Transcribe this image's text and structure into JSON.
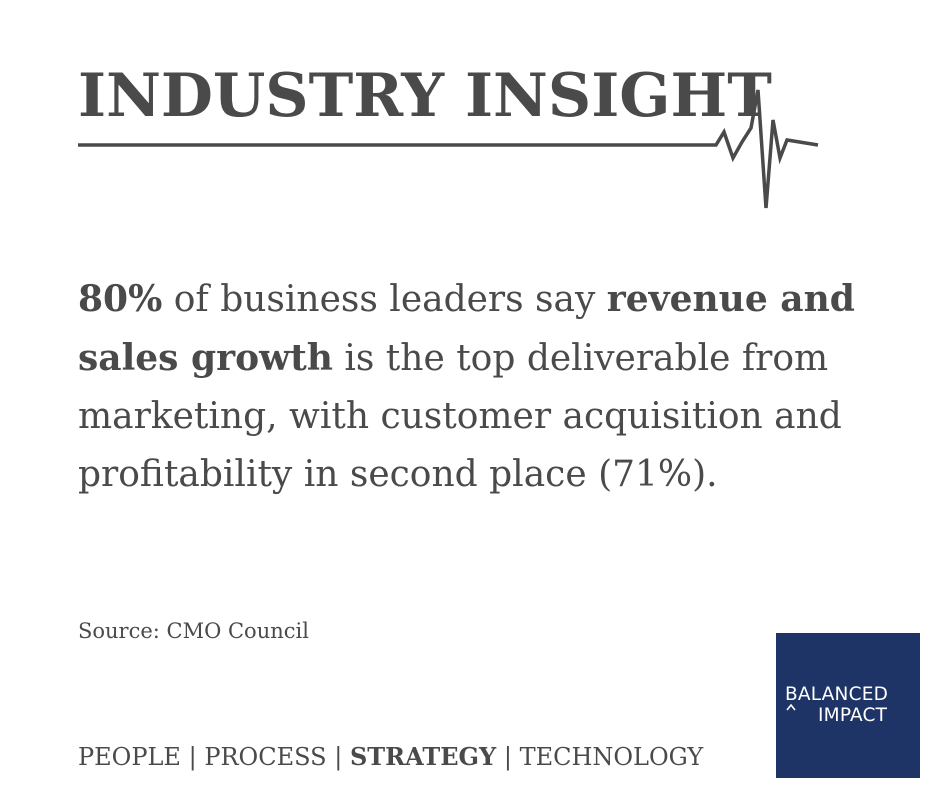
{
  "header": {
    "title": "INDUSTRY INSIGHT"
  },
  "insight": {
    "segments": [
      {
        "text": "80%",
        "bold": true
      },
      {
        "text": " of business leaders say ",
        "bold": false
      },
      {
        "text": "revenue and sales growth",
        "bold": true
      },
      {
        "text": " is the top deliverable from marketing, with customer acquisition and profitability in second place (71%).",
        "bold": false
      }
    ]
  },
  "source": {
    "text": "Source: CMO Council"
  },
  "tagline": {
    "items": [
      {
        "text": "PEOPLE",
        "bold": false
      },
      {
        "text": "PROCESS",
        "bold": false
      },
      {
        "text": "STRATEGY",
        "bold": true
      },
      {
        "text": "TECHNOLOGY",
        "bold": false
      }
    ],
    "separator": "|"
  },
  "logo": {
    "line1": "BALANCED",
    "line2": "IMPACT",
    "background": "#1e3366",
    "text_color": "#ffffff"
  },
  "colors": {
    "text": "#4a4a4a",
    "accent": "#1e3366"
  },
  "icons": {
    "pulse": "heartbeat-line-icon",
    "logo_caret": "caret-up-icon"
  }
}
